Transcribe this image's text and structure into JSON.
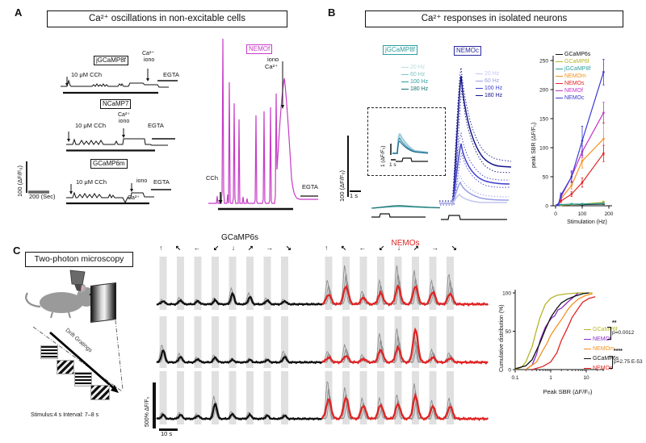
{
  "panel_a": {
    "label": "A",
    "title": "Ca²⁺ oscillations in non-excitable cells",
    "traces": [
      {
        "name": "jGCaMP8f",
        "cch": "10 μM CCh",
        "iono_line1": "Ca²⁺",
        "iono_line2": "iono",
        "egta": "EGTA"
      },
      {
        "name": "NCaMP7",
        "cch": "10 μM CCh",
        "iono_line1": "Ca²⁺",
        "iono_line2": "iono",
        "egta": "EGTA"
      },
      {
        "name": "GCaMP6m",
        "cch": "10 μM CCh",
        "iono_line1": "iono",
        "iono_line2": "Ca²⁺",
        "egta": "EGTA"
      }
    ],
    "scale_y": "100 (ΔF/F₀)",
    "scale_x": "200 (Sec)",
    "nemof": {
      "name": "NEMOf",
      "color": "#c73bc7",
      "iono_line1": "iono",
      "iono_line2": "Ca²⁺",
      "cch": "CCh",
      "egta": "EGTA"
    }
  },
  "panel_b": {
    "label": "B",
    "title": "Ca²⁺ responses in isolated neurons",
    "jgcamp8f_label": "jGCaMP8f",
    "jgcamp8f_color": "#2e9e9e",
    "nemoc_label": "NEMOc",
    "nemoc_color": "#2a2a9e",
    "freq_labels": [
      "20 Hz",
      "60 Hz",
      "100 Hz",
      "180 Hz"
    ],
    "teal_shades": [
      "#b9dcdc",
      "#83c3c3",
      "#2e9e9e",
      "#176f6f"
    ],
    "blue_shades": [
      "#c3c6ef",
      "#98a0e2",
      "#4343cd",
      "#15158a"
    ],
    "inset_scale_y": "1 (ΔF/F₀)",
    "inset_scale_x": "1 s",
    "scale_y": "100 (ΔF/F₀)",
    "scale_x": "1 s"
  },
  "panel_c": {
    "label": "C",
    "title": "Two-photon microscopy",
    "drift_label": "Drift Gratings",
    "stim_text": "Stimulus:4 s Interval: 7–8 s",
    "gcamp6s_title": "GCaMP6s",
    "nemos_title": "NEMOs",
    "nemos_color": "#e02424",
    "arrows": [
      "↑",
      "↖",
      "←",
      "↙",
      "↓",
      "↗",
      "→",
      "↘"
    ],
    "scale_y": "500% ΔF/F₀",
    "scale_x": "10 s"
  },
  "chart_data": [
    {
      "id": "peak_sbr_vs_stimulation",
      "type": "line",
      "xlabel": "Stimulation (Hz)",
      "ylabel": "peak SBR (ΔF/F₀)",
      "xticks": [
        0,
        100,
        200
      ],
      "yticks": [
        0,
        50,
        100,
        150,
        200,
        250
      ],
      "xlim": [
        0,
        220
      ],
      "ylim": [
        0,
        260
      ],
      "x": [
        5,
        10,
        20,
        60,
        100,
        180
      ],
      "series": [
        {
          "name": "GCaMP6s",
          "color": "#111111",
          "values": [
            1,
            1,
            1,
            2,
            2,
            3
          ],
          "err": [
            0,
            0,
            0,
            0,
            0,
            1
          ]
        },
        {
          "name": "GCaMP6f",
          "color": "#b5b52a",
          "values": [
            1,
            1,
            1,
            2,
            3,
            6
          ],
          "err": [
            0,
            0,
            0,
            0,
            1,
            2
          ]
        },
        {
          "name": "jGCaMP8f",
          "color": "#2e9e9e",
          "values": [
            1,
            1,
            2,
            3,
            3,
            4
          ],
          "err": [
            0,
            0,
            0,
            1,
            1,
            1
          ]
        },
        {
          "name": "NEMOm",
          "color": "#f59122",
          "values": [
            1,
            2,
            12,
            35,
            77,
            115
          ],
          "err": [
            0,
            1,
            3,
            6,
            12,
            28
          ]
        },
        {
          "name": "NEMOs",
          "color": "#e02424",
          "values": [
            1,
            2,
            8,
            20,
            40,
            90
          ],
          "err": [
            0,
            1,
            2,
            4,
            8,
            14
          ]
        },
        {
          "name": "NEMOf",
          "color": "#c634c6",
          "values": [
            1,
            2,
            15,
            50,
            93,
            160
          ],
          "err": [
            0,
            1,
            3,
            8,
            10,
            18
          ]
        },
        {
          "name": "NEMOc",
          "color": "#3a3ad1",
          "values": [
            1,
            2,
            18,
            50,
            112,
            230
          ],
          "err": [
            0,
            1,
            4,
            10,
            25,
            22
          ]
        }
      ]
    },
    {
      "id": "cumulative_distribution_peak_sbr",
      "type": "line",
      "xscale": "log",
      "xlabel": "Peak SBR (ΔF/F₀)",
      "ylabel": "Cumulative distribution (%)",
      "xticks": [
        0.1,
        1,
        10
      ],
      "yticks": [
        0,
        50,
        100
      ],
      "series": [
        {
          "name": "GCaMP6f",
          "color": "#b5b52a",
          "points": [
            [
              0.1,
              0
            ],
            [
              0.15,
              3
            ],
            [
              0.2,
              10
            ],
            [
              0.3,
              30
            ],
            [
              0.4,
              52
            ],
            [
              0.5,
              68
            ],
            [
              0.7,
              85
            ],
            [
              1,
              93
            ],
            [
              1.5,
              97
            ],
            [
              3,
              99
            ],
            [
              6,
              100
            ],
            [
              15,
              100
            ]
          ]
        },
        {
          "name": "NEMOf",
          "color": "#8b2fc9",
          "points": [
            [
              0.2,
              0
            ],
            [
              0.3,
              6
            ],
            [
              0.4,
              20
            ],
            [
              0.5,
              38
            ],
            [
              0.7,
              55
            ],
            [
              0.9,
              63
            ],
            [
              1.1,
              68
            ],
            [
              1.3,
              70
            ],
            [
              1.6,
              78
            ],
            [
              2,
              80
            ],
            [
              3,
              88
            ],
            [
              4,
              93
            ],
            [
              5,
              97
            ],
            [
              6,
              100
            ]
          ]
        },
        {
          "name": "NEMOm",
          "color": "#f59122",
          "points": [
            [
              0.2,
              0
            ],
            [
              0.4,
              10
            ],
            [
              0.6,
              25
            ],
            [
              0.8,
              35
            ],
            [
              1,
              45
            ],
            [
              1.5,
              57
            ],
            [
              2,
              65
            ],
            [
              3,
              78
            ],
            [
              4,
              85
            ],
            [
              6,
              92
            ],
            [
              10,
              97
            ],
            [
              15,
              99
            ]
          ]
        },
        {
          "name": "GCaMP6s",
          "color": "#111111",
          "points": [
            [
              0.1,
              1
            ],
            [
              0.2,
              5
            ],
            [
              0.3,
              13
            ],
            [
              0.5,
              35
            ],
            [
              0.7,
              52
            ],
            [
              1,
              68
            ],
            [
              1.5,
              80
            ],
            [
              2,
              87
            ],
            [
              3,
              92
            ],
            [
              5,
              96
            ],
            [
              8,
              99
            ],
            [
              12,
              100
            ]
          ]
        },
        {
          "name": "NEMOs",
          "color": "#e02424",
          "points": [
            [
              0.3,
              0
            ],
            [
              0.6,
              4
            ],
            [
              1,
              10
            ],
            [
              1.5,
              22
            ],
            [
              2,
              38
            ],
            [
              3,
              55
            ],
            [
              4,
              68
            ],
            [
              6,
              80
            ],
            [
              8,
              88
            ],
            [
              12,
              93
            ],
            [
              18,
              95
            ]
          ]
        }
      ],
      "annotations": [
        {
          "stars": "**",
          "p": "p=0.0012"
        },
        {
          "stars": "****",
          "p": "p=2.75 E-53"
        }
      ]
    }
  ]
}
